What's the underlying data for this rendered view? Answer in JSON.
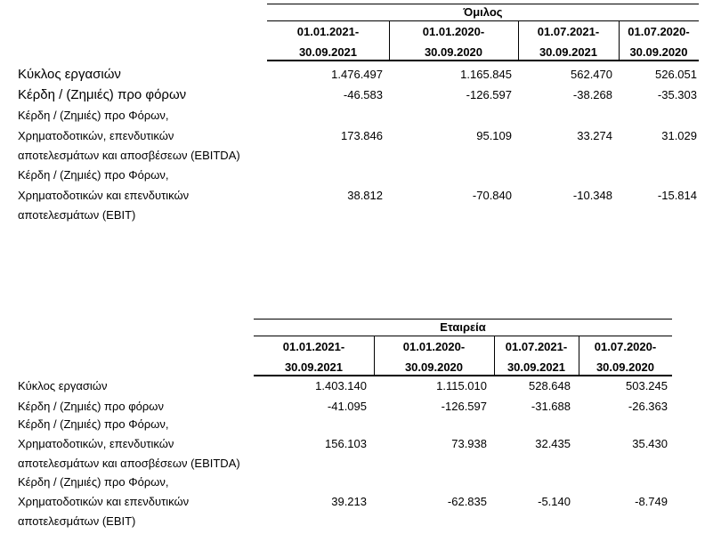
{
  "tables": [
    {
      "title": "Όμιλος",
      "columns": [
        [
          "01.01.2021-",
          "30.09.2021"
        ],
        [
          "01.01.2020-",
          "30.09.2020"
        ],
        [
          "01.07.2021-",
          "30.09.2021"
        ],
        [
          "01.07.2020-",
          "30.09.2020"
        ]
      ],
      "rows": [
        {
          "label": [
            "Κύκλος εργασιών"
          ],
          "values": [
            "1.476.497",
            "1.165.845",
            "562.470",
            "526.051"
          ]
        },
        {
          "label": [
            "Κέρδη / (Ζημιές) προ φόρων"
          ],
          "values": [
            "-46.583",
            "-126.597",
            "-38.268",
            "-35.303"
          ]
        },
        {
          "label": [
            "Κέρδη / (Ζημιές)  προ Φόρων,",
            "Χρηματοδοτικών, επενδυτικών",
            "αποτελεσμάτων και αποσβέσεων (EBITDA)"
          ],
          "values": [
            "173.846",
            "95.109",
            "33.274",
            "31.029"
          ]
        },
        {
          "label": [
            "Κέρδη / (Ζημιές)  προ Φόρων,",
            "Χρηματοδοτικών και επενδυτικών",
            "αποτελεσμάτων (EBIT)"
          ],
          "values": [
            "38.812",
            "-70.840",
            "-10.348",
            "-15.814"
          ]
        }
      ]
    },
    {
      "title": "Εταιρεία",
      "columns": [
        [
          "01.01.2021-",
          "30.09.2021"
        ],
        [
          "01.01.2020-",
          "30.09.2020"
        ],
        [
          "01.07.2021-",
          "30.09.2021"
        ],
        [
          "01.07.2020-",
          "30.09.2020"
        ]
      ],
      "rows": [
        {
          "label": [
            "Κύκλος εργασιών"
          ],
          "values": [
            "1.403.140",
            "1.115.010",
            "528.648",
            "503.245"
          ]
        },
        {
          "label": [
            "Κέρδη / (Ζημιές) προ φόρων"
          ],
          "values": [
            "-41.095",
            "-126.597",
            "-31.688",
            "-26.363"
          ]
        },
        {
          "label": [
            "Κέρδη / (Ζημιές)  προ Φόρων,",
            "Χρηματοδοτικών, επενδυτικών",
            "αποτελεσμάτων και αποσβέσεων (EBITDA)"
          ],
          "values": [
            "156.103",
            "73.938",
            "32.435",
            "35.430"
          ]
        },
        {
          "label": [
            "Κέρδη / (Ζημιές)  προ Φόρων,",
            "Χρηματοδοτικών και επενδυτικών",
            "αποτελεσμάτων (EBIT)"
          ],
          "values": [
            "39.213",
            "-62.835",
            "-5.140",
            "-8.749"
          ]
        }
      ]
    }
  ]
}
